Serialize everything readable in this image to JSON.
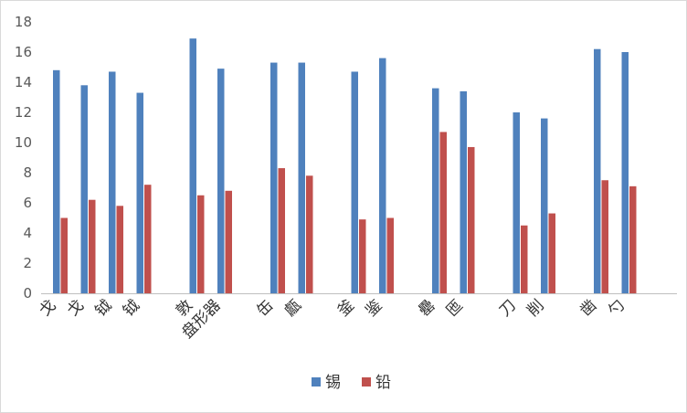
{
  "chart_data": {
    "type": "bar",
    "categories": [
      "戈",
      "戈",
      "钺",
      "钺",
      "敦",
      "盘形器",
      "缶",
      "甗",
      "釜",
      "鉴",
      "罍",
      "匜",
      "刀",
      "削",
      "凿",
      "勺"
    ],
    "groups": [
      4,
      2,
      2,
      2,
      2,
      2,
      2
    ],
    "series": [
      {
        "name": "锡",
        "color": "#4f81bd",
        "values": [
          14.8,
          13.8,
          14.7,
          13.3,
          16.9,
          14.9,
          15.3,
          15.3,
          14.7,
          15.6,
          13.6,
          13.4,
          12.0,
          11.6,
          16.2,
          16.0
        ]
      },
      {
        "name": "铅",
        "color": "#c0504d",
        "values": [
          5.0,
          6.2,
          5.8,
          7.2,
          6.5,
          6.8,
          8.3,
          7.8,
          4.9,
          5.0,
          10.7,
          9.7,
          4.5,
          5.3,
          7.5,
          7.1
        ]
      }
    ],
    "yticks": [
      0,
      2,
      4,
      6,
      8,
      10,
      12,
      14,
      16,
      18
    ],
    "ylim": [
      0,
      18
    ],
    "grid": false,
    "legend": "bottom-center"
  }
}
